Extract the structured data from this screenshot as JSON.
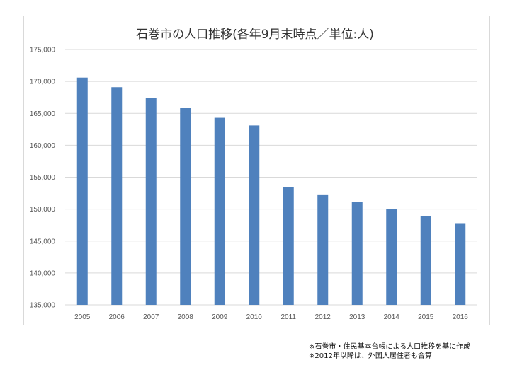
{
  "chart_data": {
    "type": "bar",
    "title": "石巻市の人口推移(各年9月末時点／単位:人)",
    "categories": [
      "2005",
      "2006",
      "2007",
      "2008",
      "2009",
      "2010",
      "2011",
      "2012",
      "2013",
      "2014",
      "2015",
      "2016"
    ],
    "values": [
      170600,
      169100,
      167400,
      165900,
      164300,
      163100,
      153400,
      152300,
      151100,
      150000,
      148900,
      147800
    ],
    "ylim": [
      135000,
      175000
    ],
    "yticks": [
      "135,000",
      "140,000",
      "145,000",
      "150,000",
      "155,000",
      "160,000",
      "165,000",
      "170,000",
      "175,000"
    ],
    "grid": true,
    "bar_color": "#4f81bd",
    "xlabel": "",
    "ylabel": ""
  },
  "notes": [
    "※石巻市・住民基本台帳による人口推移を基に作成",
    "※2012年以降は、外国人居住者も合算"
  ]
}
